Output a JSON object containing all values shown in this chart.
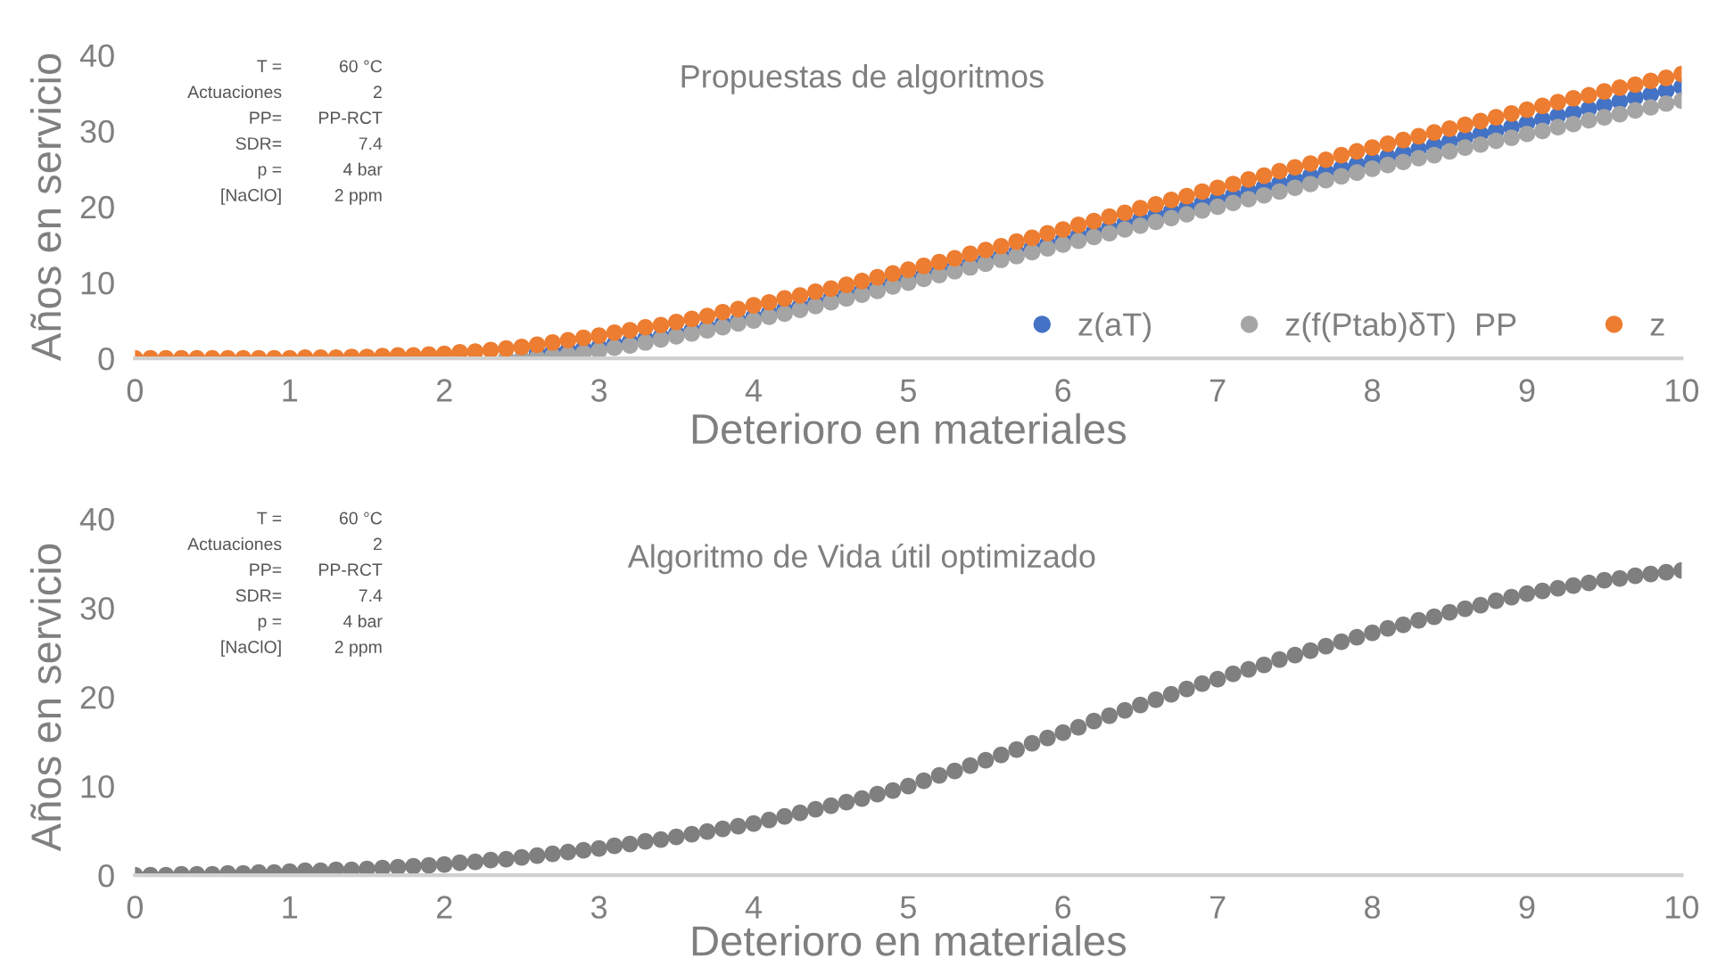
{
  "chart_data": [
    {
      "type": "scatter",
      "title": "Propuestas de algoritmos",
      "xlabel": "Deterioro en materiales",
      "ylabel": "Años en servicio",
      "annotations": [
        "T =",
        "60 °C",
        "Actuaciones",
        "2",
        "PP=",
        "PP-RCT",
        "SDR=",
        "7.4",
        "p =",
        "4 bar",
        "[NaClO]",
        "2 ppm"
      ],
      "x": [
        0,
        0.1,
        0.2,
        0.3,
        0.4,
        0.5,
        0.6,
        0.7,
        0.8,
        0.9,
        1,
        1.1,
        1.2,
        1.3,
        1.4,
        1.5,
        1.6,
        1.7,
        1.8,
        1.9,
        2,
        2.1,
        2.2,
        2.3,
        2.4,
        2.5,
        2.6,
        2.7,
        2.8,
        2.9,
        3,
        3.1,
        3.2,
        3.3,
        3.4,
        3.5,
        3.6,
        3.7,
        3.8,
        3.9,
        4,
        4.1,
        4.2,
        4.3,
        4.4,
        4.5,
        4.6,
        4.7,
        4.8,
        4.9,
        5,
        5.1,
        5.2,
        5.3,
        5.4,
        5.5,
        5.6,
        5.7,
        5.8,
        5.9,
        6,
        6.1,
        6.2,
        6.3,
        6.4,
        6.5,
        6.6,
        6.7,
        6.8,
        6.9,
        7,
        7.1,
        7.2,
        7.3,
        7.4,
        7.5,
        7.6,
        7.7,
        7.8,
        7.9,
        8,
        8.1,
        8.2,
        8.3,
        8.4,
        8.5,
        8.6,
        8.7,
        8.8,
        8.9,
        9,
        9.1,
        9.2,
        9.3,
        9.4,
        9.5,
        9.6,
        9.7,
        9.8,
        9.9,
        10
      ],
      "series": [
        {
          "name": "z(aT)",
          "color": "#4472c4",
          "values": [
            null,
            null,
            null,
            null,
            null,
            null,
            null,
            null,
            null,
            null,
            null,
            null,
            null,
            null,
            null,
            null,
            null,
            null,
            null,
            null,
            null,
            null,
            null,
            null,
            null,
            null,
            0.7,
            0.9,
            1.1,
            1.3,
            1.5,
            1.9,
            2.2,
            2.6,
            2.9,
            3.3,
            3.7,
            4.1,
            4.6,
            5.0,
            5.5,
            6.0,
            6.5,
            6.9,
            7.4,
            7.9,
            8.4,
            8.9,
            9.5,
            10.0,
            10.5,
            11.0,
            11.5,
            12.0,
            12.5,
            13.0,
            13.5,
            14.0,
            14.6,
            15.1,
            15.6,
            16.2,
            16.7,
            17.2,
            17.8,
            18.3,
            18.9,
            19.4,
            19.9,
            20.5,
            21.0,
            21.5,
            22.1,
            22.6,
            23.1,
            23.6,
            24.1,
            24.6,
            25.1,
            25.6,
            26.1,
            26.6,
            27.1,
            27.6,
            28.1,
            28.6,
            29.1,
            29.6,
            30.0,
            30.5,
            31.0,
            31.5,
            32.0,
            32.4,
            32.9,
            33.4,
            33.9,
            34.4,
            34.8,
            35.3,
            35.8
          ]
        },
        {
          "name": "z(f(Ptab)δT)  PP",
          "color": "#a5a5a5",
          "values": [
            null,
            null,
            null,
            null,
            null,
            null,
            null,
            null,
            null,
            null,
            null,
            null,
            null,
            null,
            null,
            null,
            null,
            null,
            null,
            null,
            null,
            null,
            null,
            null,
            0,
            0,
            0.1,
            0.3,
            0.5,
            0.7,
            1.0,
            1.4,
            1.7,
            2.1,
            2.5,
            2.9,
            3.3,
            3.7,
            4.1,
            4.6,
            5.0,
            5.5,
            5.9,
            6.4,
            6.9,
            7.4,
            7.9,
            8.4,
            8.9,
            9.5,
            10.0,
            10.5,
            11.0,
            11.5,
            12.0,
            12.5,
            13.0,
            13.5,
            14.0,
            14.5,
            15.0,
            15.5,
            16.0,
            16.5,
            17.0,
            17.5,
            18.0,
            18.5,
            19.0,
            19.5,
            20.0,
            20.5,
            21.0,
            21.5,
            22.0,
            22.5,
            23.0,
            23.5,
            24.0,
            24.5,
            25.0,
            25.5,
            25.9,
            26.4,
            26.8,
            27.3,
            27.8,
            28.2,
            28.7,
            29.1,
            29.6,
            30.0,
            30.5,
            30.9,
            31.4,
            31.8,
            32.2,
            32.7,
            33.1,
            33.6,
            34.0
          ]
        },
        {
          "name": "z",
          "color": "#ed7d31",
          "values": [
            0,
            0,
            0,
            0,
            0,
            0,
            0,
            0,
            0,
            0,
            0,
            0.1,
            0.1,
            0.1,
            0.2,
            0.2,
            0.3,
            0.4,
            0.4,
            0.5,
            0.6,
            0.8,
            0.9,
            1.1,
            1.3,
            1.5,
            1.8,
            2.1,
            2.4,
            2.7,
            3.0,
            3.4,
            3.7,
            4.1,
            4.4,
            4.8,
            5.2,
            5.6,
            6.1,
            6.5,
            7.0,
            7.4,
            7.9,
            8.3,
            8.8,
            9.2,
            9.7,
            10.2,
            10.7,
            11.2,
            11.7,
            12.2,
            12.7,
            13.2,
            13.8,
            14.3,
            14.8,
            15.4,
            15.9,
            16.5,
            17.0,
            17.6,
            18.1,
            18.7,
            19.2,
            19.8,
            20.3,
            20.9,
            21.4,
            22.0,
            22.5,
            23.0,
            23.6,
            24.1,
            24.7,
            25.2,
            25.7,
            26.2,
            26.8,
            27.3,
            27.8,
            28.3,
            28.8,
            29.3,
            29.8,
            30.3,
            30.8,
            31.3,
            31.8,
            32.3,
            32.8,
            33.3,
            33.8,
            34.3,
            34.7,
            35.2,
            35.7,
            36.1,
            36.6,
            37.0,
            37.5
          ]
        }
      ],
      "xlim": [
        0,
        10
      ],
      "xticks": [
        0,
        1,
        2,
        3,
        4,
        5,
        6,
        7,
        8,
        9,
        10
      ],
      "ylim": [
        0,
        40
      ],
      "yticks": [
        0,
        10,
        20,
        30,
        40
      ],
      "marker": "circle",
      "legend": "bottom right",
      "grid": false
    },
    {
      "type": "scatter",
      "title": "Algoritmo de Vida útil optimizado",
      "xlabel": "Deterioro en materiales",
      "ylabel": "Años en servicio",
      "annotations": [
        "T =",
        "60 °C",
        "Actuaciones",
        "2",
        "PP=",
        "PP-RCT",
        "SDR=",
        "7.4",
        "p =",
        "4 bar",
        "[NaClO]",
        "2 ppm"
      ],
      "x": [
        0,
        0.1,
        0.2,
        0.3,
        0.4,
        0.5,
        0.6,
        0.7,
        0.8,
        0.9,
        1,
        1.1,
        1.2,
        1.3,
        1.4,
        1.5,
        1.6,
        1.7,
        1.8,
        1.9,
        2,
        2.1,
        2.2,
        2.3,
        2.4,
        2.5,
        2.6,
        2.7,
        2.8,
        2.9,
        3,
        3.1,
        3.2,
        3.3,
        3.4,
        3.5,
        3.6,
        3.7,
        3.8,
        3.9,
        4,
        4.1,
        4.2,
        4.3,
        4.4,
        4.5,
        4.6,
        4.7,
        4.8,
        4.9,
        5,
        5.1,
        5.2,
        5.3,
        5.4,
        5.5,
        5.6,
        5.7,
        5.8,
        5.9,
        6,
        6.1,
        6.2,
        6.3,
        6.4,
        6.5,
        6.6,
        6.7,
        6.8,
        6.9,
        7,
        7.1,
        7.2,
        7.3,
        7.4,
        7.5,
        7.6,
        7.7,
        7.8,
        7.9,
        8,
        8.1,
        8.2,
        8.3,
        8.4,
        8.5,
        8.6,
        8.7,
        8.8,
        8.9,
        9,
        9.1,
        9.2,
        9.3,
        9.4,
        9.5,
        9.6,
        9.7,
        9.8,
        9.9,
        10
      ],
      "series": [
        {
          "color": "#7f7f7f",
          "values": [
            0,
            0,
            0,
            0.1,
            0.1,
            0.1,
            0.2,
            0.2,
            0.3,
            0.3,
            0.4,
            0.5,
            0.5,
            0.6,
            0.6,
            0.7,
            0.8,
            0.9,
            1.0,
            1.1,
            1.2,
            1.4,
            1.5,
            1.7,
            1.8,
            2.0,
            2.2,
            2.4,
            2.6,
            2.8,
            3.0,
            3.3,
            3.5,
            3.8,
            4.0,
            4.3,
            4.6,
            4.9,
            5.2,
            5.5,
            5.8,
            6.2,
            6.6,
            7.0,
            7.4,
            7.8,
            8.2,
            8.6,
            9.1,
            9.5,
            10.0,
            10.6,
            11.2,
            11.7,
            12.3,
            12.9,
            13.5,
            14.1,
            14.8,
            15.4,
            16.0,
            16.6,
            17.3,
            17.9,
            18.5,
            19.1,
            19.7,
            20.3,
            20.9,
            21.5,
            22.0,
            22.6,
            23.1,
            23.6,
            24.2,
            24.7,
            25.2,
            25.7,
            26.2,
            26.7,
            27.2,
            27.7,
            28.1,
            28.6,
            29.0,
            29.5,
            29.9,
            30.3,
            30.8,
            31.2,
            31.6,
            31.9,
            32.2,
            32.5,
            32.8,
            33.1,
            33.3,
            33.6,
            33.8,
            34.0,
            34.2
          ]
        }
      ],
      "xlim": [
        0,
        10
      ],
      "xticks": [
        0,
        1,
        2,
        3,
        4,
        5,
        6,
        7,
        8,
        9,
        10
      ],
      "ylim": [
        0,
        40
      ],
      "yticks": [
        0,
        10,
        20,
        30,
        40
      ],
      "marker": "circle",
      "grid": false
    }
  ]
}
